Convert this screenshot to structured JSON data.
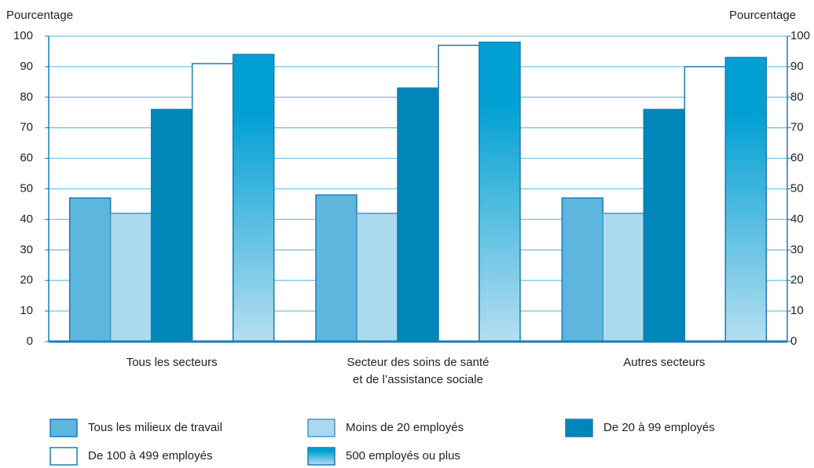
{
  "chart_data": {
    "type": "bar",
    "y_label": "Pourcentage",
    "categories": [
      [
        "Tous les secteurs"
      ],
      [
        "Secteur des soins de santé",
        "et de l’assistance sociale"
      ],
      [
        "Autres secteurs"
      ]
    ],
    "series": [
      {
        "name": "Tous les milieux de travail",
        "color": "#5db6de",
        "values": [
          47,
          48,
          47
        ]
      },
      {
        "name": "Moins de 20 employés",
        "color": "#abd9ee",
        "values": [
          42,
          42,
          42
        ]
      },
      {
        "name": "De 20 à 99 employés",
        "color": "#0086b9",
        "values": [
          76,
          83,
          76
        ]
      },
      {
        "name": "De 100 à 499 employés",
        "color": "#ffffff",
        "values": [
          91,
          97,
          90
        ]
      },
      {
        "name": "500 employés ou plus",
        "color": "#00a0d3",
        "values": [
          94,
          98,
          93
        ]
      }
    ],
    "ylim": [
      0,
      100
    ],
    "yticks": [
      0,
      10,
      20,
      30,
      40,
      50,
      60,
      70,
      80,
      90,
      100
    ],
    "y2lim": [
      0,
      100
    ],
    "y2ticks": [
      0,
      10,
      20,
      30,
      40,
      50,
      60,
      70,
      80,
      90,
      100
    ],
    "grid": true
  }
}
